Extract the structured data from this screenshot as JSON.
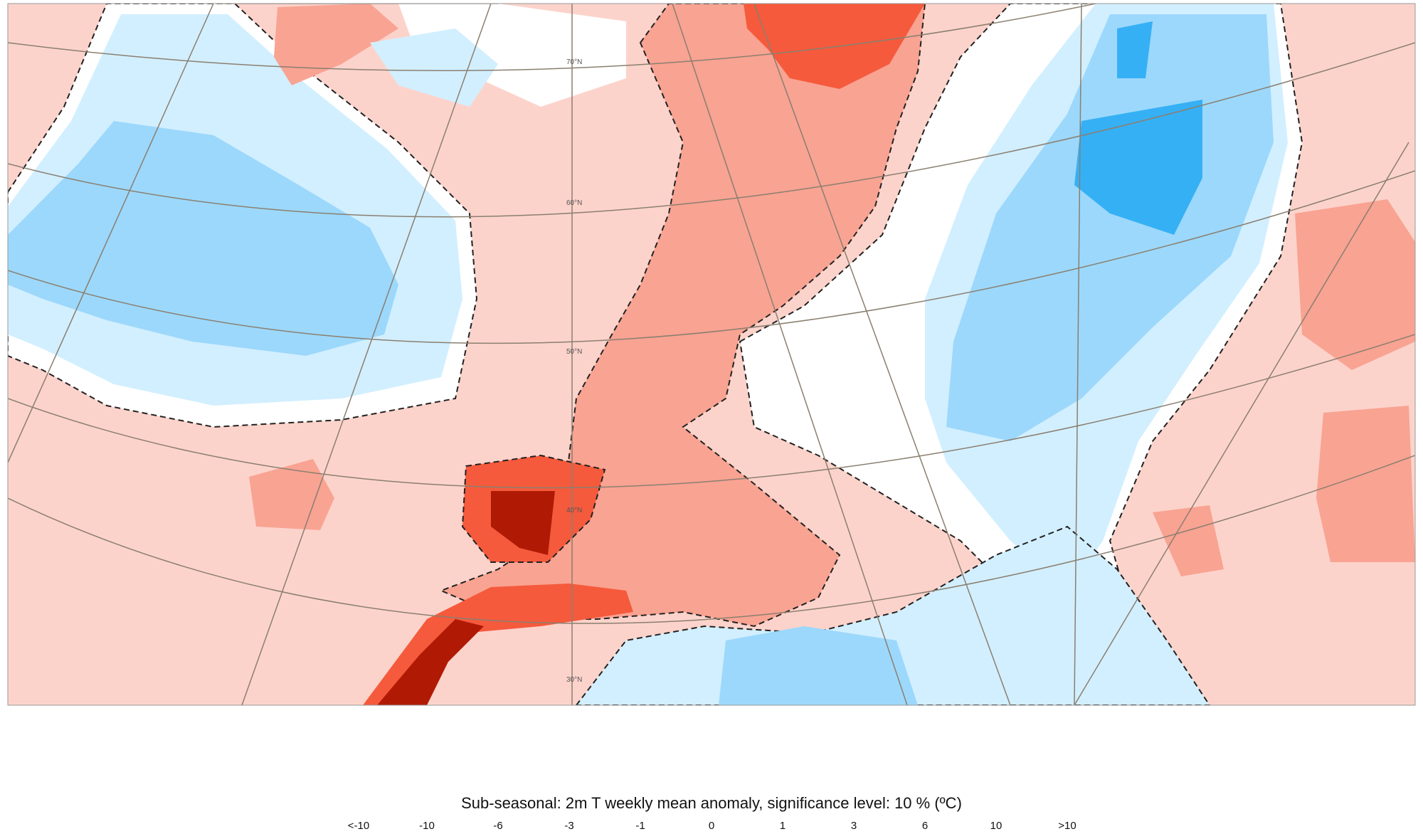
{
  "title": "Sub-seasonal: 2m T weekly mean anomaly, significance level: 10 % (ºC)",
  "legend_labels": [
    "<-10",
    "-10",
    "-6",
    "-3",
    "-1",
    "0",
    "1",
    "3",
    "6",
    "10",
    ">10"
  ],
  "latitude_labels": [
    "70°N",
    "60°N",
    "50°N",
    "40°N",
    "30°N"
  ],
  "colors": {
    "light_pink": "#fcd3cb",
    "salmon": "#f9a392",
    "red": "#f55a3c",
    "dark_red": "#b01a05",
    "light_blue": "#d2efff",
    "blue": "#9cd8fb",
    "bright_blue": "#36b0f5"
  }
}
